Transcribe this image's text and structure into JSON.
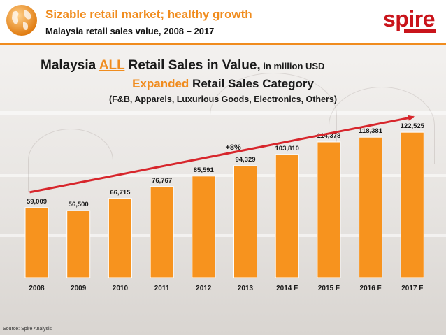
{
  "header": {
    "title": "Sizable retail market; healthy growth",
    "subtitle": "Malaysia retail sales value, 2008 – 2017",
    "logo_text": "spire"
  },
  "chart_heading": {
    "title_pre": "Malaysia ",
    "title_all": "ALL",
    "title_post": " Retail Sales in Value,",
    "title_unit": " in million USD",
    "subtitle_hl": "Expanded",
    "subtitle_rest": " Retail Sales Category",
    "note": "(F&B, Apparels, Luxurious Goods, Electronics, Others)"
  },
  "chart_data": {
    "type": "bar",
    "categories": [
      "2008",
      "2009",
      "2010",
      "2011",
      "2012",
      "2013",
      "2014 F",
      "2015 F",
      "2016 F",
      "2017 F"
    ],
    "values": [
      59009,
      56500,
      66715,
      76767,
      85591,
      94329,
      103810,
      114378,
      118381,
      122525
    ],
    "value_labels": [
      "59,009",
      "56,500",
      "66,715",
      "76,767",
      "85,591",
      "94,329",
      "103,810",
      "114,378",
      "118,381",
      "122,525"
    ],
    "ylim": [
      0,
      135000
    ],
    "grid": false,
    "annotation": "+8%",
    "trend_arrow": {
      "from_category": "2008",
      "to_category": "2017 F"
    },
    "colors": {
      "bar": "#f7931e",
      "bar_edge": "#ffffff",
      "arrow": "#d7262c",
      "label": "#1a1a1a"
    }
  },
  "footer": {
    "source": "Source: Spire Analysis"
  }
}
